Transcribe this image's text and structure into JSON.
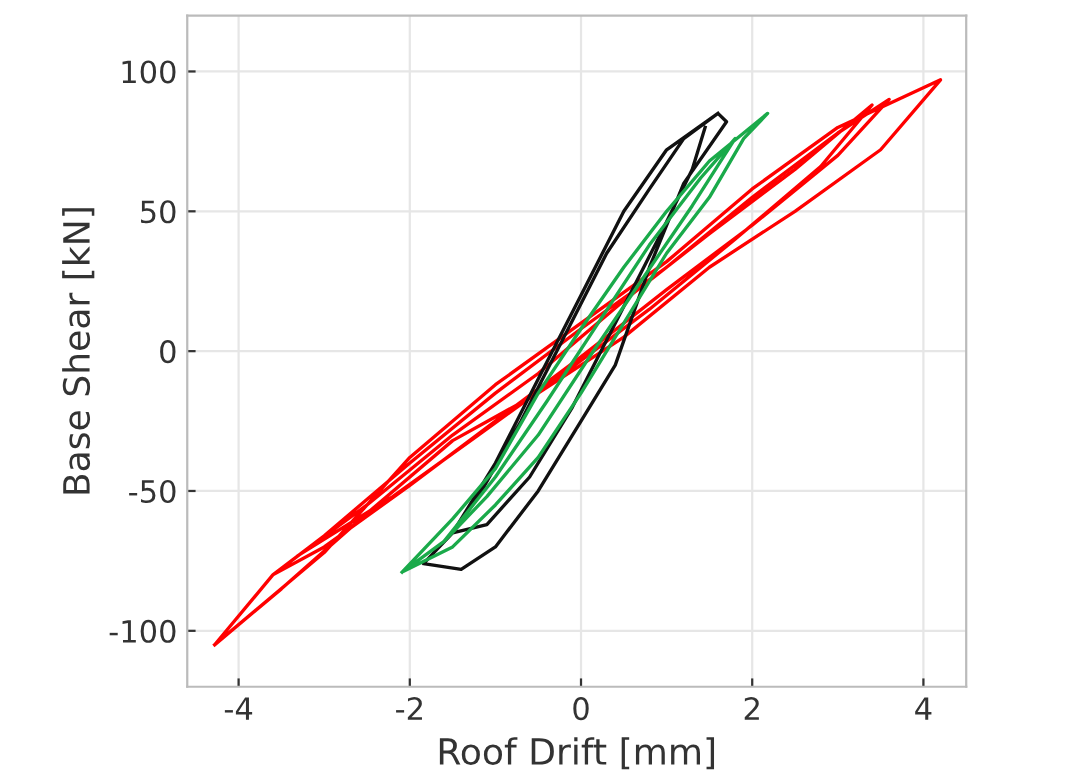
{
  "chart_data": {
    "type": "line",
    "xlabel": "Roof Drift [mm]",
    "ylabel": "Base Shear [kN]",
    "xlim": [
      -4.6,
      4.5
    ],
    "ylim": [
      -120,
      120
    ],
    "xticks": [
      -4,
      -2,
      0,
      2,
      4
    ],
    "yticks": [
      -100,
      -50,
      0,
      50,
      100
    ],
    "grid": true,
    "legend": false,
    "marker": "none",
    "line_style": "solid",
    "series": [
      {
        "color": "#ff0000",
        "x": [
          -4.28,
          -3.0,
          -2.0,
          -1.0,
          0.0,
          1.0,
          2.0,
          3.0,
          4.2,
          3.5,
          2.5,
          1.5,
          0.5,
          -0.5,
          -1.5,
          -2.5,
          -3.5,
          -4.28,
          -3.6,
          -3.0,
          -2.0,
          -1.0,
          0.0,
          1.0,
          2.0,
          3.0,
          3.6,
          3.0,
          2.0,
          1.0,
          0.0,
          -1.0,
          -2.0,
          -3.0,
          -3.6,
          -3.3,
          -2.5,
          -1.5,
          -0.5,
          0.5,
          1.5,
          2.5,
          3.4,
          2.8,
          1.8,
          0.8,
          -0.2,
          -1.2,
          -2.2,
          -3.3
        ],
        "values": [
          -105,
          -72,
          -38,
          -12,
          10,
          32,
          58,
          80,
          97,
          72,
          50,
          30,
          5,
          -15,
          -32,
          -58,
          -85,
          -105,
          -80,
          -66,
          -40,
          -15,
          8,
          30,
          55,
          78,
          90,
          70,
          45,
          22,
          -2,
          -25,
          -48,
          -70,
          -80,
          -73,
          -55,
          -30,
          -8,
          18,
          42,
          65,
          88,
          66,
          40,
          15,
          -8,
          -30,
          -52,
          -73
        ]
      },
      {
        "color": "#111111",
        "x": [
          1.6,
          1.0,
          0.5,
          0.0,
          -0.5,
          -1.0,
          -1.5,
          -1.84,
          -1.4,
          -1.0,
          -0.5,
          0.0,
          0.4,
          0.8,
          1.2,
          1.7,
          1.6,
          1.2,
          0.8,
          0.3,
          -0.2,
          -0.7,
          -1.2,
          -1.5,
          -1.1,
          -0.6,
          -0.1,
          0.4,
          0.9,
          1.3,
          1.45
        ],
        "values": [
          85,
          72,
          50,
          20,
          -10,
          -40,
          -65,
          -76,
          -78,
          -70,
          -50,
          -25,
          -5,
          30,
          60,
          82,
          85,
          76,
          58,
          35,
          5,
          -25,
          -52,
          -65,
          -62,
          -45,
          -20,
          10,
          40,
          65,
          80
        ]
      },
      {
        "color": "#1aaa4a",
        "x": [
          -2.09,
          -1.5,
          -1.0,
          -0.5,
          0.0,
          0.5,
          1.0,
          1.5,
          2.18,
          1.9,
          1.5,
          1.0,
          0.5,
          0.0,
          -0.5,
          -1.0,
          -1.5,
          -2.09,
          -1.6,
          -1.0,
          -0.4,
          0.2,
          0.8,
          1.4,
          1.8,
          1.3,
          0.7,
          0.1,
          -0.5,
          -1.1,
          -1.6
        ],
        "values": [
          -79,
          -60,
          -42,
          -15,
          8,
          30,
          50,
          68,
          85,
          76,
          55,
          35,
          10,
          -15,
          -38,
          -55,
          -70,
          -79,
          -68,
          -45,
          -18,
          10,
          38,
          62,
          76,
          52,
          25,
          -2,
          -30,
          -52,
          -68
        ]
      }
    ]
  }
}
